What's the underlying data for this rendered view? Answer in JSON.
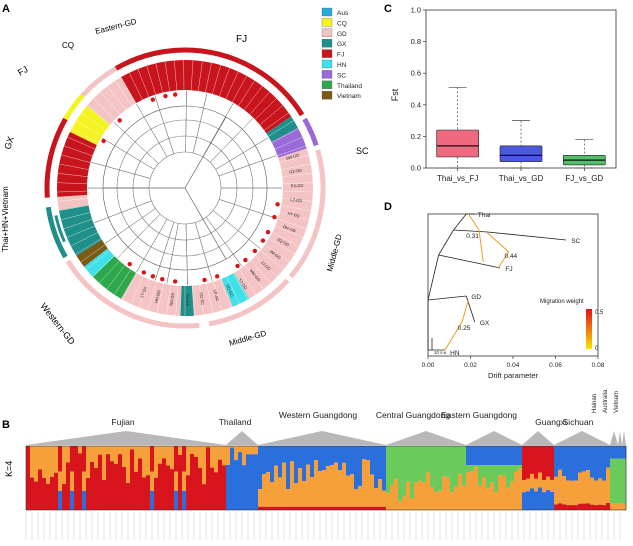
{
  "panels": {
    "a": "A",
    "b": "B",
    "c": "C",
    "d": "D"
  },
  "panelA": {
    "clades": {
      "fj_top": "FJ",
      "eastern_gd": "Eastern-GD",
      "cq": "CQ",
      "fj_left": "FJ",
      "gx": "GX",
      "thai_hn_vietnam": "Thai+HN+Vietnam",
      "western_gd": "Western-GD",
      "middle_gd_bottom": "Middle-GD",
      "middle_gd_right": "Middle-GD",
      "sc": "SC"
    },
    "legend": [
      {
        "label": "Aus",
        "color": "#2aa8d8"
      },
      {
        "label": "CQ",
        "color": "#f4f422"
      },
      {
        "label": "GD",
        "color": "#f4c4c4"
      },
      {
        "label": "GX",
        "color": "#1f8f8a"
      },
      {
        "label": "FJ",
        "color": "#c8141c"
      },
      {
        "label": "HN",
        "color": "#3fe0e8"
      },
      {
        "label": "SC",
        "color": "#9a6ad8"
      },
      {
        "label": "Thailand",
        "color": "#2ea84a"
      },
      {
        "label": "Vietnam",
        "color": "#7a5a14"
      }
    ],
    "leaf_labels": [
      "SW-GD",
      "GZ-GD",
      "SX-GD",
      "LZ-GD",
      "HY-GD",
      "DH-GD",
      "ZQ-GD",
      "JM-GD",
      "ZJ-GD",
      "MM-GD",
      "YJ-GD",
      "SQ-GD",
      "LP-SC",
      "CD-SC",
      "TH-GX",
      "NN-GX",
      "HH-GD",
      "LT-GX"
    ]
  },
  "panelB": {
    "k_label": "K=4",
    "colors": {
      "blue": "#2a6fdc",
      "orange": "#f5a03a",
      "red": "#d8141c",
      "green": "#6acb5a"
    },
    "groups": [
      "Fujian",
      "Thailand",
      "Western Guangdong",
      "Central Guangdong",
      "Eastern Guangdong",
      "Guangxi",
      "Sichuan",
      "Hainan",
      "Australia",
      "Vietnam"
    ]
  },
  "chart_data": [
    {
      "type": "box",
      "title": "",
      "ylabel": "Fst",
      "ylim": [
        0,
        1.0
      ],
      "yticks": [
        "0.0",
        "0.2",
        "0.4",
        "0.6",
        "0.8",
        "1.0"
      ],
      "categories": [
        "Thai_vs_FJ",
        "Thai_vs_GD",
        "FJ_vs_GD"
      ],
      "colors": [
        "#ef6a7e",
        "#4a58e0",
        "#52c06a"
      ],
      "boxes": [
        {
          "min": 0.0,
          "q1": 0.07,
          "median": 0.14,
          "q3": 0.24,
          "max": 0.51
        },
        {
          "min": 0.0,
          "q1": 0.04,
          "median": 0.08,
          "q3": 0.14,
          "max": 0.3
        },
        {
          "min": 0.0,
          "q1": 0.02,
          "median": 0.05,
          "q3": 0.08,
          "max": 0.18
        }
      ]
    },
    {
      "type": "tree",
      "xlabel": "Drift parameter",
      "xlim": [
        0,
        0.08
      ],
      "xticks": [
        "0.00",
        "0.02",
        "0.04",
        "0.06",
        "0.08"
      ],
      "scale_label": "10 s.e.",
      "legend_title": "Migration weight",
      "legend_max": "0.5",
      "legend_min": "0",
      "tips": [
        "Thai",
        "SC",
        "FJ",
        "GD",
        "GX",
        "HN"
      ],
      "migration_weights": [
        "0.31",
        "0.44",
        "0.25"
      ]
    }
  ]
}
